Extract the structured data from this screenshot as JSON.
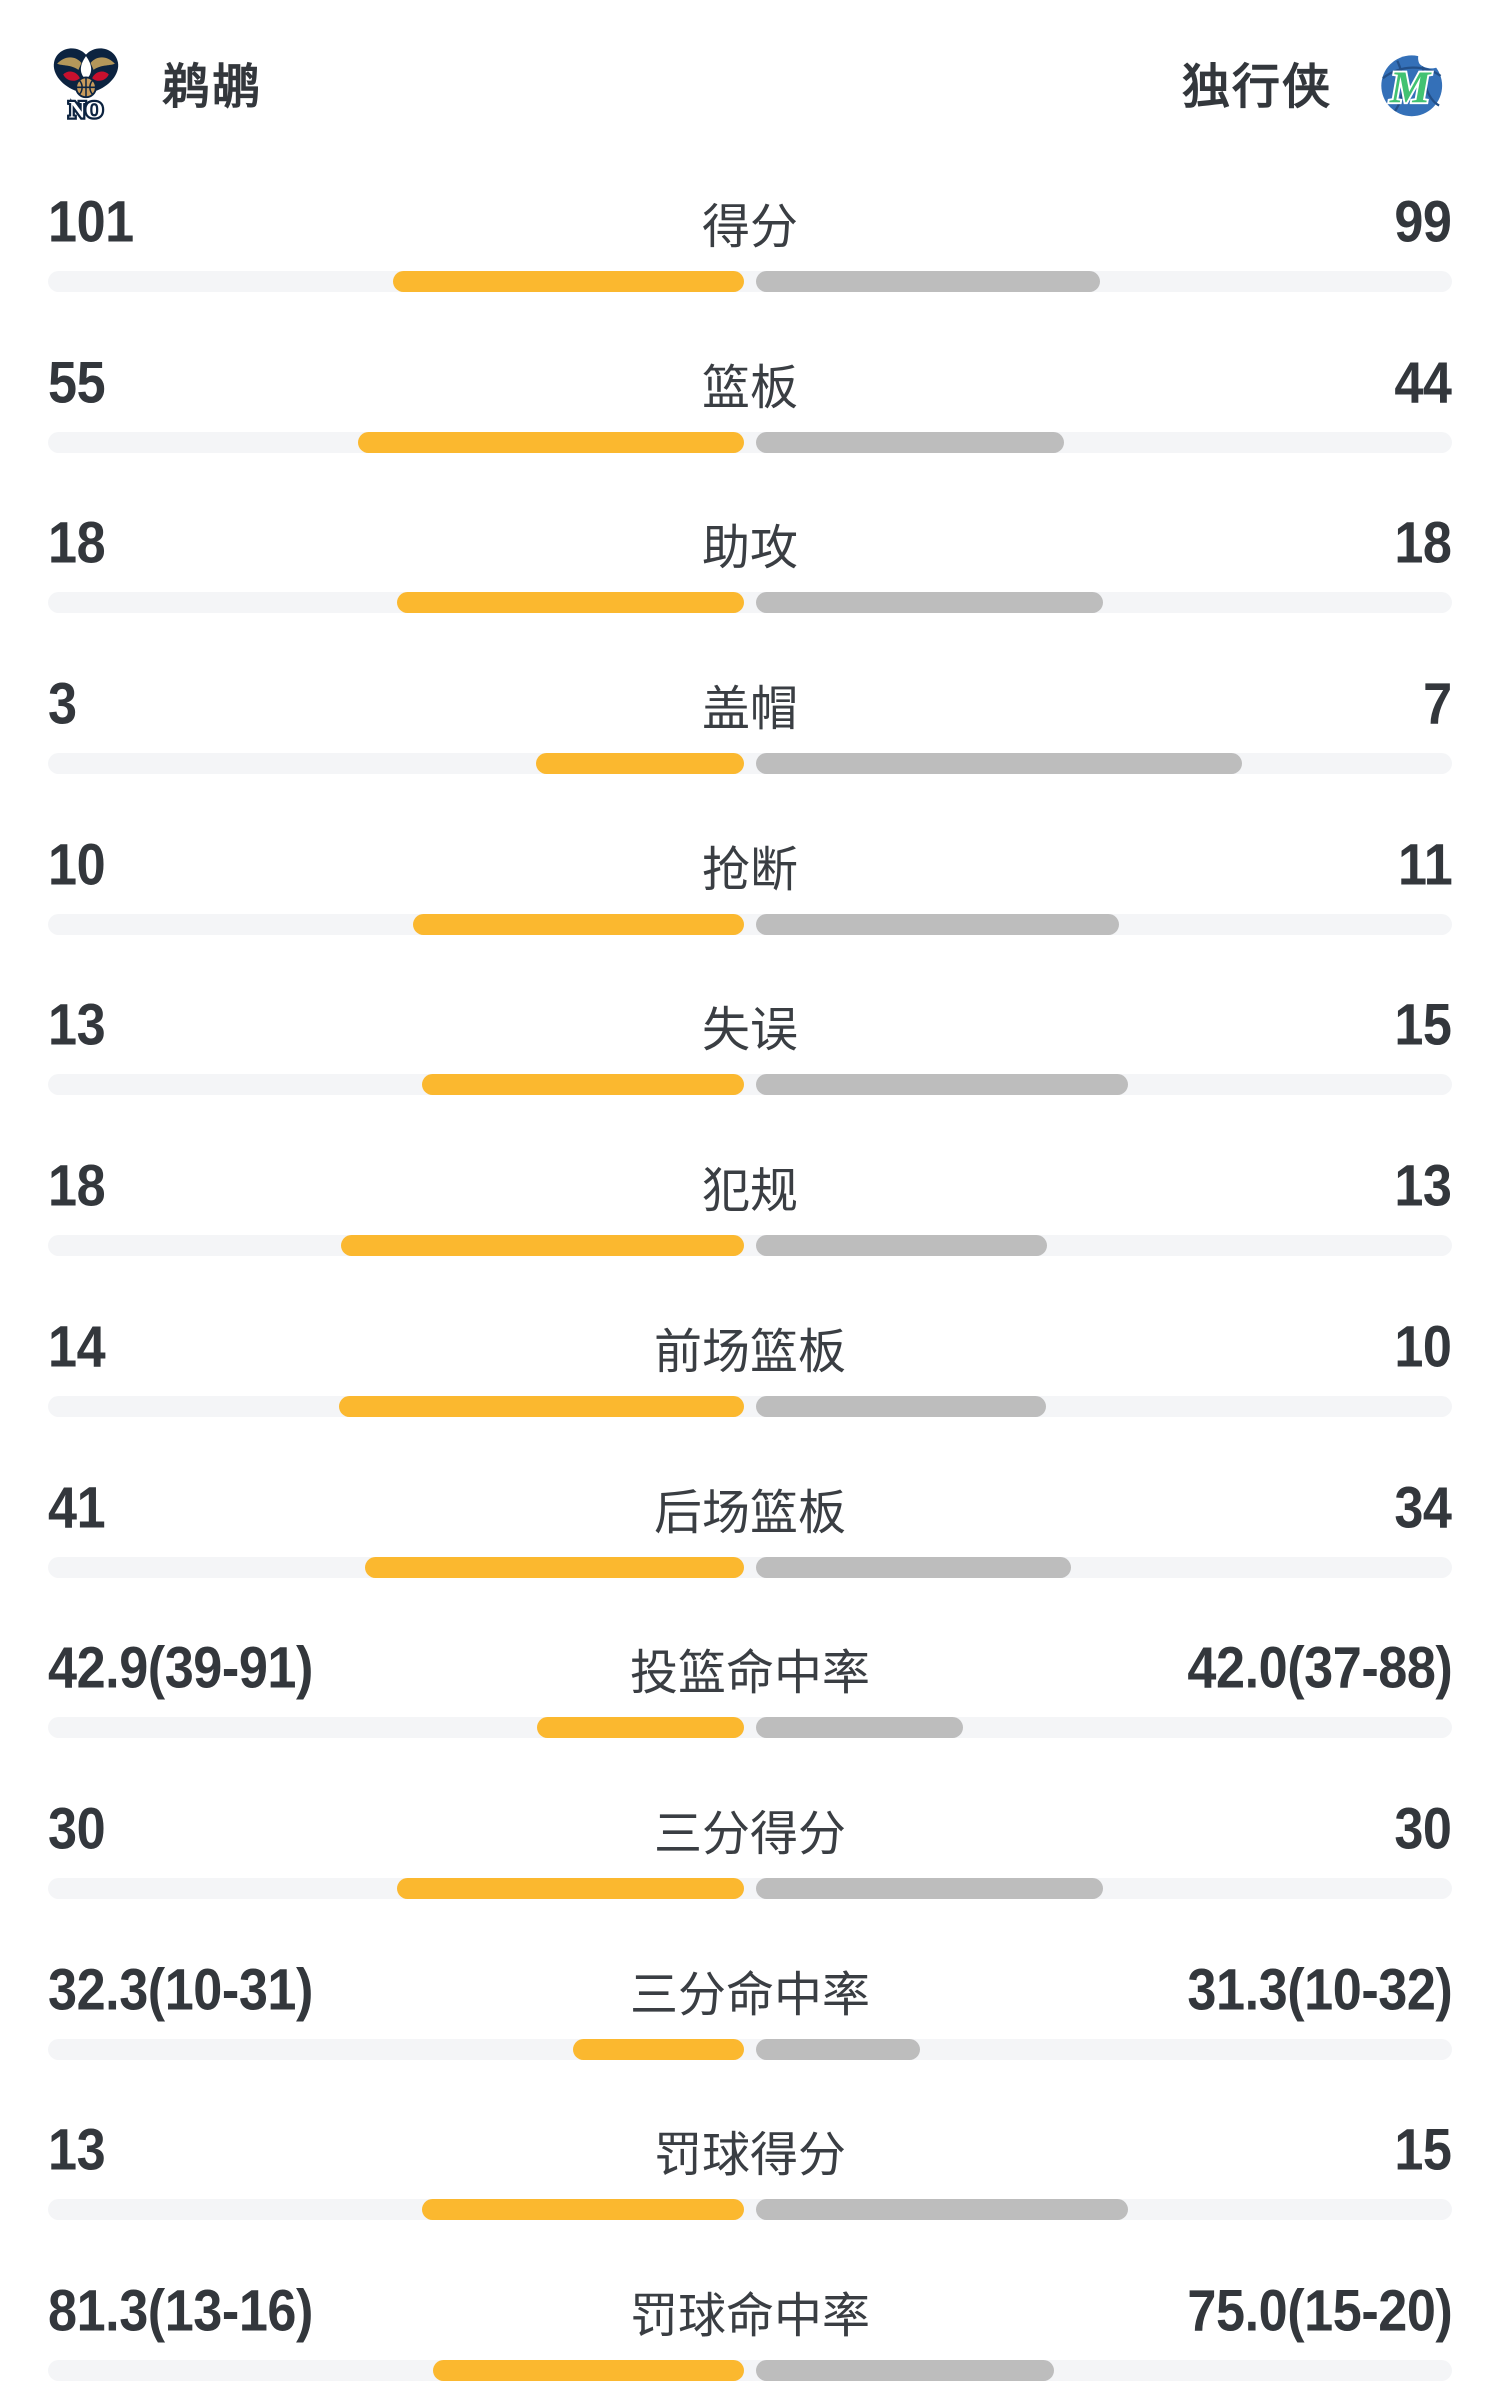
{
  "header": {
    "home": {
      "name": "鹈鹕",
      "logo_icon": "pelicans-logo"
    },
    "away": {
      "name": "独行侠",
      "logo_icon": "mavericks-logo"
    }
  },
  "colors": {
    "home_bar": "#FBB82F",
    "away_bar": "#BDBDBD",
    "bar_track": "#F4F5F7",
    "text": "#33373C",
    "pelicans_navy": "#0C2340",
    "pelicans_gold": "#B4975A",
    "pelicans_red": "#C8102E",
    "mavericks_blue": "#3470B8",
    "mavericks_green": "#42C272"
  },
  "stats": {
    "rows": [
      {
        "label": "得分",
        "home": "101",
        "away": "99",
        "home_bar_pct": 50.4,
        "away_bar_pct": 49.4
      },
      {
        "label": "篮板",
        "home": "55",
        "away": "44",
        "home_bar_pct": 55.4,
        "away_bar_pct": 44.3
      },
      {
        "label": "助攻",
        "home": "18",
        "away": "18",
        "home_bar_pct": 49.9,
        "away_bar_pct": 49.9
      },
      {
        "label": "盖帽",
        "home": "3",
        "away": "7",
        "home_bar_pct": 29.9,
        "away_bar_pct": 69.8
      },
      {
        "label": "抢断",
        "home": "10",
        "away": "11",
        "home_bar_pct": 47.5,
        "away_bar_pct": 52.2
      },
      {
        "label": "失误",
        "home": "13",
        "away": "15",
        "home_bar_pct": 46.3,
        "away_bar_pct": 53.4
      },
      {
        "label": "犯规",
        "home": "18",
        "away": "13",
        "home_bar_pct": 57.9,
        "away_bar_pct": 41.8
      },
      {
        "label": "前场篮板",
        "home": "14",
        "away": "10",
        "home_bar_pct": 58.2,
        "away_bar_pct": 41.6
      },
      {
        "label": "后场篮板",
        "home": "41",
        "away": "34",
        "home_bar_pct": 54.5,
        "away_bar_pct": 45.2
      },
      {
        "label": "投篮命中率",
        "home": "42.9(39-91)",
        "away": "42.0(37-88)",
        "home_bar_pct": 29.7,
        "away_bar_pct": 29.7
      },
      {
        "label": "三分得分",
        "home": "30",
        "away": "30",
        "home_bar_pct": 49.9,
        "away_bar_pct": 49.9
      },
      {
        "label": "三分命中率",
        "home": "32.3(10-31)",
        "away": "31.3(10-32)",
        "home_bar_pct": 24.6,
        "away_bar_pct": 23.6
      },
      {
        "label": "罚球得分",
        "home": "13",
        "away": "15",
        "home_bar_pct": 46.3,
        "away_bar_pct": 53.4
      },
      {
        "label": "罚球命中率",
        "home": "81.3(13-16)",
        "away": "75.0(15-20)",
        "home_bar_pct": 44.7,
        "away_bar_pct": 42.8
      }
    ]
  },
  "chart_data": {
    "type": "bar",
    "subtype": "horizontal-comparison",
    "teams": [
      "鹈鹕",
      "独行侠"
    ],
    "categories": [
      "得分",
      "篮板",
      "助攻",
      "盖帽",
      "抢断",
      "失误",
      "犯规",
      "前场篮板",
      "后场篮板",
      "投篮命中率",
      "三分得分",
      "三分命中率",
      "罚球得分",
      "罚球命中率"
    ],
    "series": [
      {
        "name": "鹈鹕",
        "color": "#FBB82F",
        "values": [
          101,
          55,
          18,
          3,
          10,
          13,
          18,
          14,
          41,
          42.9,
          30,
          32.3,
          13,
          81.3
        ]
      },
      {
        "name": "独行侠",
        "color": "#BDBDBD",
        "values": [
          99,
          44,
          18,
          7,
          11,
          15,
          13,
          10,
          34,
          42.0,
          30,
          31.3,
          15,
          75.0
        ]
      }
    ],
    "made_attempt": {
      "投篮命中率": {
        "鹈鹕": "39-91",
        "独行侠": "37-88"
      },
      "三分命中率": {
        "鹈鹕": "10-31",
        "独行侠": "10-32"
      },
      "罚球命中率": {
        "鹈鹕": "13-16",
        "独行侠": "15-20"
      }
    },
    "layout": "bars anchored at center, home extends left (yellow), away extends right (gray), light track full width"
  }
}
